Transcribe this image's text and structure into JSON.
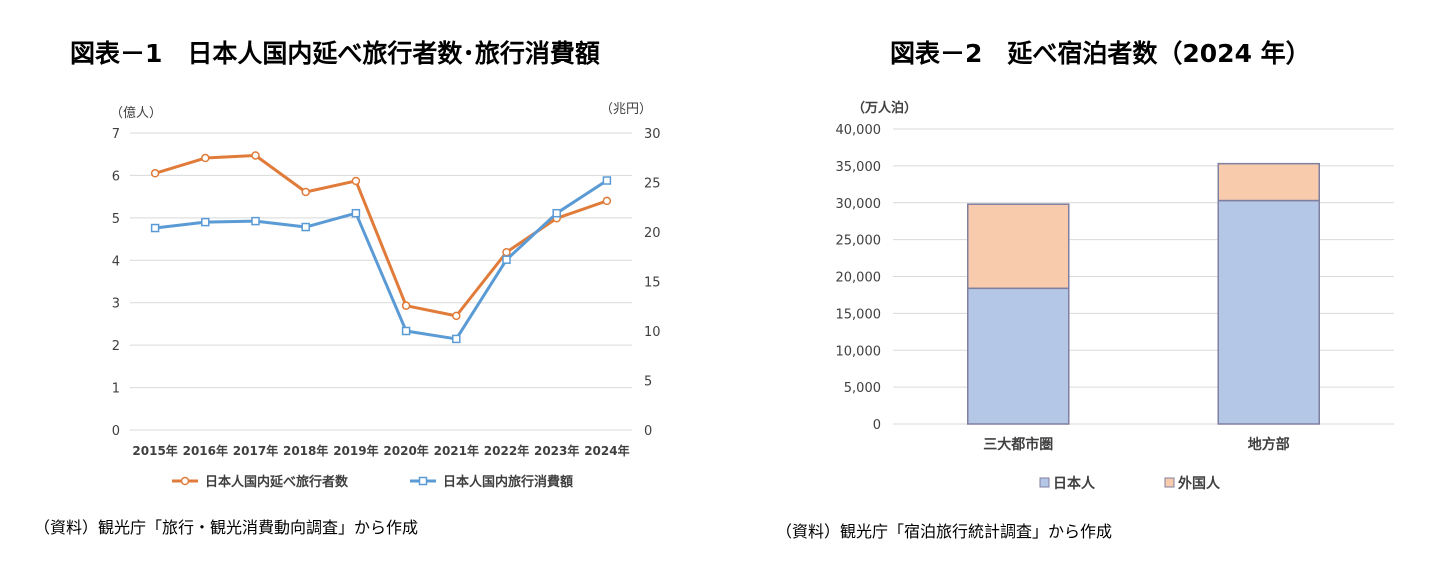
{
  "figure1": {
    "title": "図表－1　日本人国内延べ旅行者数･旅行消費額",
    "source": "（資料）観光庁「旅行・観光消費動向調査」から作成",
    "colors": {
      "travelers": "#E07B39",
      "spending": "#5B9BD5",
      "grid": "#D9D9D9",
      "axis_text": "#404040"
    }
  },
  "figure2": {
    "title": "図表－2　延べ宿泊者数（2024 年）",
    "source": "（資料）観光庁「宿泊旅行統計調査」から作成",
    "colors": {
      "japanese": "#B4C7E7",
      "foreign": "#F8CBAD",
      "border": "#7F7F9F",
      "grid": "#D9D9D9"
    }
  },
  "chart_data": [
    {
      "type": "line",
      "title": "日本人国内延べ旅行者数･旅行消費額",
      "x": [
        "2015年",
        "2016年",
        "2017年",
        "2018年",
        "2019年",
        "2020年",
        "2021年",
        "2022年",
        "2023年",
        "2024年"
      ],
      "y_left_label": "（億人）",
      "y_right_label": "（兆円）",
      "y_left_range": [
        0,
        7
      ],
      "y_left_ticks": [
        "0",
        "1",
        "2",
        "3",
        "4",
        "5",
        "6",
        "7"
      ],
      "y_right_range": [
        0,
        30
      ],
      "y_right_ticks": [
        "0",
        "5",
        "10",
        "15",
        "20",
        "25",
        "30"
      ],
      "grid": true,
      "legend_position": "bottom",
      "series": [
        {
          "name": "日本人国内延べ旅行者数",
          "axis": "left",
          "marker": "circle",
          "values": [
            6.05,
            6.41,
            6.47,
            5.61,
            5.87,
            2.93,
            2.69,
            4.19,
            4.99,
            5.4
          ]
        },
        {
          "name": "日本人国内旅行消費額",
          "axis": "right",
          "marker": "square",
          "values": [
            20.4,
            21.0,
            21.1,
            20.5,
            21.9,
            10.0,
            9.2,
            17.2,
            21.9,
            25.2
          ]
        }
      ]
    },
    {
      "type": "bar",
      "stacked": true,
      "title": "延べ宿泊者数（2024 年）",
      "categories": [
        "三大都市圏",
        "地方部"
      ],
      "y_label": "（万人泊）",
      "ylim": [
        0,
        40000
      ],
      "y_ticks": [
        "0",
        "5,000",
        "10,000",
        "15,000",
        "20,000",
        "25,000",
        "30,000",
        "35,000",
        "40,000"
      ],
      "grid": true,
      "legend_position": "bottom",
      "series": [
        {
          "name": "日本人",
          "values": [
            18400,
            30300
          ]
        },
        {
          "name": "外国人",
          "values": [
            11400,
            5000
          ]
        }
      ]
    }
  ]
}
